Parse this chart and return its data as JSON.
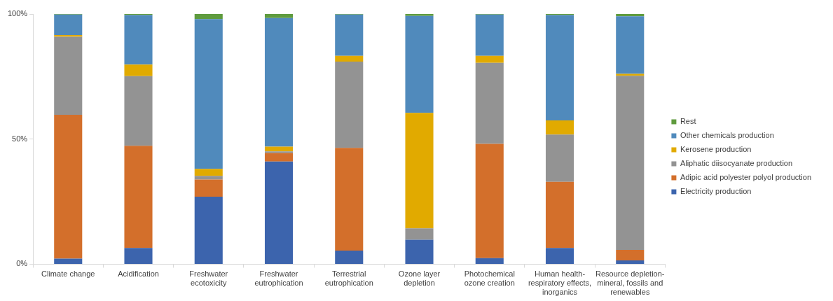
{
  "chart_data": {
    "type": "bar",
    "stacked": true,
    "categories": [
      "Climate change",
      "Acidification",
      "Freshwater ecotoxicity",
      "Freshwater eutrophication",
      "Terrestrial eutrophication",
      "Ozone layer depletion",
      "Photochemical ozone creation",
      "Human health-respiratory effects, inorganics",
      "Resource depletion-mineral, fossils and renewables"
    ],
    "series": [
      {
        "name": "Electricity production",
        "color": "#3c64ad",
        "values": [
          2.2,
          6.5,
          27.0,
          41.0,
          5.4,
          9.8,
          2.4,
          6.5,
          1.5
        ]
      },
      {
        "name": "Adipic acid polyester polyol production",
        "color": "#d36f2b",
        "values": [
          57.5,
          40.8,
          6.8,
          3.4,
          41.1,
          0,
          45.7,
          26.4,
          4.2
        ]
      },
      {
        "name": "Aliphatic diisocyanate production",
        "color": "#939393",
        "values": [
          31.2,
          27.9,
          1.5,
          0.7,
          34.5,
          4.5,
          32.4,
          18.9,
          69.6
        ]
      },
      {
        "name": "Kerosene production",
        "color": "#e1aa00",
        "values": [
          0.7,
          4.6,
          2.8,
          1.9,
          2.3,
          46.2,
          2.8,
          5.7,
          0.8
        ]
      },
      {
        "name": "Other chemicals production",
        "color": "#508abc",
        "values": [
          8.2,
          19.8,
          59.9,
          51.4,
          16.5,
          38.7,
          16.5,
          42.1,
          23.0
        ]
      },
      {
        "name": "Rest",
        "color": "#5f9b3e",
        "values": [
          0.2,
          0.4,
          2.0,
          1.6,
          0.2,
          0.8,
          0.2,
          0.4,
          0.9
        ]
      }
    ],
    "ylim": [
      0,
      100
    ],
    "yticks": [
      {
        "value": 0,
        "label": "0%"
      },
      {
        "value": 50,
        "label": "50%"
      },
      {
        "value": 100,
        "label": "100%"
      }
    ],
    "grid": false,
    "legend": "right"
  }
}
